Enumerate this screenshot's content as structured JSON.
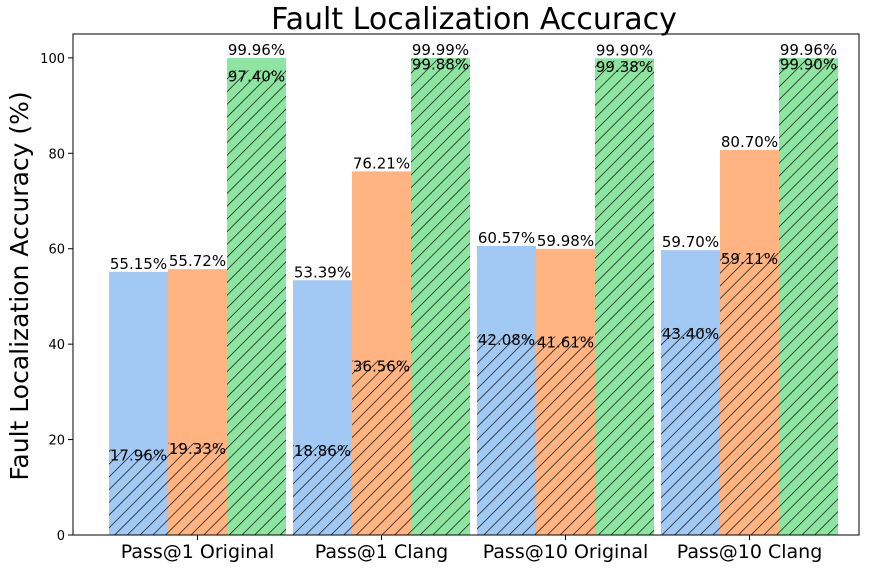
{
  "chart_data": {
    "type": "bar",
    "title": "Fault Localization Accuracy",
    "xlabel": "",
    "ylabel": "Fault Localization Accuracy (%)",
    "ylim": [
      0,
      105
    ],
    "yticks": [
      0,
      20,
      40,
      60,
      80,
      100
    ],
    "grid": false,
    "legend": "none",
    "categories": [
      "Pass@1 Original",
      "Pass@1 Clang",
      "Pass@10 Original",
      "Pass@10 Clang"
    ],
    "series": [
      {
        "color": "#a1c9f4",
        "values": [
          55.15,
          53.39,
          60.57,
          59.7
        ],
        "hatched_values": [
          17.96,
          18.86,
          42.08,
          43.4
        ],
        "labels": [
          "55.15%",
          "53.39%",
          "60.57%",
          "59.70%"
        ],
        "hatched_labels": [
          "17.96%",
          "18.86%",
          "42.08%",
          "43.40%"
        ]
      },
      {
        "color": "#ffb482",
        "values": [
          55.72,
          76.21,
          59.98,
          80.7
        ],
        "hatched_values": [
          19.33,
          36.56,
          41.61,
          59.11
        ],
        "labels": [
          "55.72%",
          "76.21%",
          "59.98%",
          "80.70%"
        ],
        "hatched_labels": [
          "19.33%",
          "36.56%",
          "41.61%",
          "59.11%"
        ]
      },
      {
        "color": "#8de5a1",
        "values": [
          99.96,
          99.99,
          99.9,
          99.96
        ],
        "hatched_values": [
          97.4,
          99.88,
          99.38,
          99.9
        ],
        "labels": [
          "99.96%",
          "99.99%",
          "99.90%",
          "99.96%"
        ],
        "hatched_labels": [
          "97.40%",
          "99.88%",
          "99.38%",
          "99.90%"
        ]
      }
    ]
  }
}
